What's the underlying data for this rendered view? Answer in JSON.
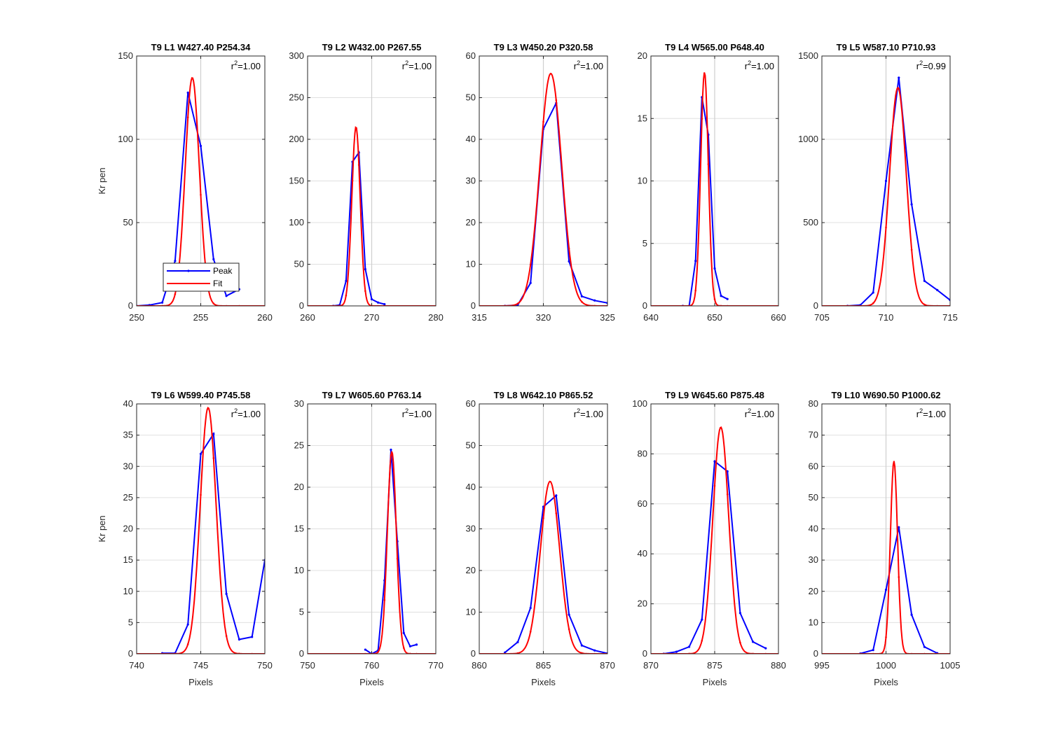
{
  "chart_data": [
    {
      "type": "line",
      "title": "T9 L1 W427.40 P254.34",
      "r2": "r2=1.00",
      "r2_base": "r",
      "r2_sup": "2",
      "r2_val": "=1.00",
      "ylabel": "Kr pen",
      "xlabel": "",
      "xlim": [
        250,
        260
      ],
      "ylim": [
        0,
        150
      ],
      "xticks": [
        250,
        255,
        260
      ],
      "yticks": [
        0,
        50,
        100,
        150
      ],
      "vline": 255,
      "legend": [
        "Peak",
        "Fit"
      ],
      "legend_position": "lower-center",
      "series": [
        {
          "name": "Peak",
          "x": [
            250,
            251,
            252,
            253,
            254,
            255,
            256,
            257,
            258
          ],
          "y": [
            0,
            0.5,
            2,
            27,
            128,
            96,
            28,
            6,
            10
          ]
        },
        {
          "name": "Fit",
          "center": 254.34,
          "amp": 137,
          "sigma": 0.55
        }
      ]
    },
    {
      "type": "line",
      "title": "T9 L2 W432.00 P267.55",
      "r2": "r2=1.00",
      "r2_base": "r",
      "r2_sup": "2",
      "r2_val": "=1.00",
      "ylabel": "",
      "xlabel": "",
      "xlim": [
        260,
        280
      ],
      "ylim": [
        0,
        300
      ],
      "xticks": [
        260,
        270,
        280
      ],
      "yticks": [
        0,
        50,
        100,
        150,
        200,
        250,
        300
      ],
      "vline": 270,
      "series": [
        {
          "name": "Peak",
          "x": [
            264,
            265,
            266,
            267,
            268,
            269,
            270,
            271,
            272
          ],
          "y": [
            0,
            1,
            30,
            173,
            184,
            44,
            8,
            4,
            2
          ]
        },
        {
          "name": "Fit",
          "center": 267.55,
          "amp": 215,
          "sigma": 0.65
        }
      ]
    },
    {
      "type": "line",
      "title": "T9 L3 W450.20 P320.58",
      "r2": "r2=1.00",
      "r2_base": "r",
      "r2_sup": "2",
      "r2_val": "=1.00",
      "ylabel": "",
      "xlabel": "",
      "xlim": [
        315,
        325
      ],
      "ylim": [
        0,
        60
      ],
      "xticks": [
        315,
        320,
        325
      ],
      "yticks": [
        0,
        10,
        20,
        30,
        40,
        50,
        60
      ],
      "vline": 320,
      "series": [
        {
          "name": "Peak",
          "x": [
            317,
            318,
            319,
            320,
            321,
            322,
            323,
            324,
            325
          ],
          "y": [
            0,
            0.2,
            5.5,
            42.5,
            48.7,
            10.7,
            2.3,
            1.3,
            0.7
          ]
        },
        {
          "name": "Fit",
          "center": 320.58,
          "amp": 55.8,
          "sigma": 0.85
        }
      ]
    },
    {
      "type": "line",
      "title": "T9 L4 W565.00 P648.40",
      "r2": "r2=1.00",
      "r2_base": "r",
      "r2_sup": "2",
      "r2_val": "=1.00",
      "ylabel": "",
      "xlabel": "",
      "xlim": [
        640,
        660
      ],
      "ylim": [
        0,
        20
      ],
      "xticks": [
        640,
        650,
        660
      ],
      "yticks": [
        0,
        5,
        10,
        15,
        20
      ],
      "vline": 650,
      "series": [
        {
          "name": "Peak",
          "x": [
            645,
            646,
            647,
            648,
            649,
            650,
            651,
            652
          ],
          "y": [
            0,
            0,
            3.6,
            16.7,
            13.7,
            3,
            0.8,
            0.55
          ]
        },
        {
          "name": "Fit",
          "center": 648.4,
          "amp": 18.7,
          "sigma": 0.6
        }
      ]
    },
    {
      "type": "line",
      "title": "T9 L5 W587.10 P710.93",
      "r2": "r2=0.99",
      "r2_base": "r",
      "r2_sup": "2",
      "r2_val": "=0.99",
      "ylabel": "",
      "xlabel": "",
      "xlim": [
        705,
        715
      ],
      "ylim": [
        0,
        1500
      ],
      "xticks": [
        705,
        710,
        715
      ],
      "yticks": [
        0,
        500,
        1000,
        1500
      ],
      "vline": 710,
      "series": [
        {
          "name": "Peak",
          "x": [
            707,
            708,
            709,
            710,
            711,
            712,
            713,
            714,
            715
          ],
          "y": [
            0,
            5,
            80,
            750,
            1370,
            610,
            150,
            95,
            35
          ]
        },
        {
          "name": "Fit",
          "center": 710.93,
          "amp": 1310,
          "sigma": 0.65
        }
      ]
    },
    {
      "type": "line",
      "title": "T9 L6 W599.40 P745.58",
      "r2": "r2=1.00",
      "r2_base": "r",
      "r2_sup": "2",
      "r2_val": "=1.00",
      "ylabel": "Kr pen",
      "xlabel": "Pixels",
      "xlim": [
        740,
        750
      ],
      "ylim": [
        0,
        40
      ],
      "xticks": [
        740,
        745,
        750
      ],
      "yticks": [
        0,
        5,
        10,
        15,
        20,
        25,
        30,
        35,
        40
      ],
      "vline": 745,
      "series": [
        {
          "name": "Peak",
          "x": [
            742,
            743,
            744,
            745,
            746,
            747,
            748,
            749,
            750
          ],
          "y": [
            0.1,
            0.1,
            4.7,
            32,
            35.2,
            9.6,
            2.3,
            2.7,
            15
          ]
        },
        {
          "name": "Fit",
          "center": 745.58,
          "amp": 39.4,
          "sigma": 0.62
        }
      ]
    },
    {
      "type": "line",
      "title": "T9 L7 W605.60 P763.14",
      "r2": "r2=1.00",
      "r2_base": "r",
      "r2_sup": "2",
      "r2_val": "=1.00",
      "ylabel": "",
      "xlabel": "Pixels",
      "xlim": [
        750,
        770
      ],
      "ylim": [
        0,
        30
      ],
      "xticks": [
        750,
        760,
        770
      ],
      "yticks": [
        0,
        5,
        10,
        15,
        20,
        25,
        30
      ],
      "vline": 760,
      "series": [
        {
          "name": "Peak",
          "x": [
            759,
            760,
            761,
            762,
            763,
            764,
            765,
            766,
            767
          ],
          "y": [
            0.5,
            0,
            0.4,
            8.8,
            24.5,
            13.5,
            2.5,
            0.9,
            1.1
          ]
        },
        {
          "name": "Fit",
          "center": 763.14,
          "amp": 24.3,
          "sigma": 0.7
        }
      ]
    },
    {
      "type": "line",
      "title": "T9 L8 W642.10 P865.52",
      "r2": "r2=1.00",
      "r2_base": "r",
      "r2_sup": "2",
      "r2_val": "=1.00",
      "ylabel": "",
      "xlabel": "Pixels",
      "xlim": [
        860,
        870
      ],
      "ylim": [
        0,
        60
      ],
      "xticks": [
        860,
        865,
        870
      ],
      "yticks": [
        0,
        10,
        20,
        30,
        40,
        50,
        60
      ],
      "vline": 865,
      "series": [
        {
          "name": "Peak",
          "x": [
            862,
            863,
            864,
            865,
            866,
            867,
            868,
            869,
            870
          ],
          "y": [
            0.3,
            2.8,
            11,
            35.3,
            38,
            9.4,
            2,
            0.8,
            0.1
          ]
        },
        {
          "name": "Fit",
          "center": 865.52,
          "amp": 41.4,
          "sigma": 0.75
        }
      ]
    },
    {
      "type": "line",
      "title": "T9 L9 W645.60 P875.48",
      "r2": "r2=1.00",
      "r2_base": "r",
      "r2_sup": "2",
      "r2_val": "=1.00",
      "ylabel": "",
      "xlabel": "Pixels",
      "xlim": [
        870,
        880
      ],
      "ylim": [
        0,
        100
      ],
      "xticks": [
        870,
        875,
        880
      ],
      "yticks": [
        0,
        20,
        40,
        60,
        80,
        100
      ],
      "vline": 875,
      "series": [
        {
          "name": "Peak",
          "x": [
            871,
            872,
            873,
            874,
            875,
            876,
            877,
            878,
            879
          ],
          "y": [
            0,
            0.8,
            2.8,
            13.7,
            77,
            73,
            16.3,
            4.8,
            2.2
          ]
        },
        {
          "name": "Fit",
          "center": 875.48,
          "amp": 90.7,
          "sigma": 0.62
        }
      ]
    },
    {
      "type": "line",
      "title": "T9 L10 W690.50 P1000.62",
      "r2": "r2=1.00",
      "r2_base": "r",
      "r2_sup": "2",
      "r2_val": "=1.00",
      "ylabel": "",
      "xlabel": "Pixels",
      "xlim": [
        995,
        1005
      ],
      "ylim": [
        0,
        80
      ],
      "xticks": [
        995,
        1000,
        1005
      ],
      "yticks": [
        0,
        10,
        20,
        30,
        40,
        50,
        60,
        70,
        80
      ],
      "vline": 1000,
      "series": [
        {
          "name": "Peak",
          "x": [
            998,
            999,
            1000,
            1001,
            1002,
            1003,
            1004
          ],
          "y": [
            0.1,
            1.2,
            20.5,
            40.5,
            12.5,
            2.2,
            0.2
          ]
        },
        {
          "name": "Fit",
          "center": 1000.62,
          "amp": 61.7,
          "sigma": 0.28
        }
      ]
    }
  ],
  "colors": {
    "peak": "#0000ff",
    "fit": "#ff0000",
    "grid": "#e0e0e0",
    "frame": "#262626"
  }
}
